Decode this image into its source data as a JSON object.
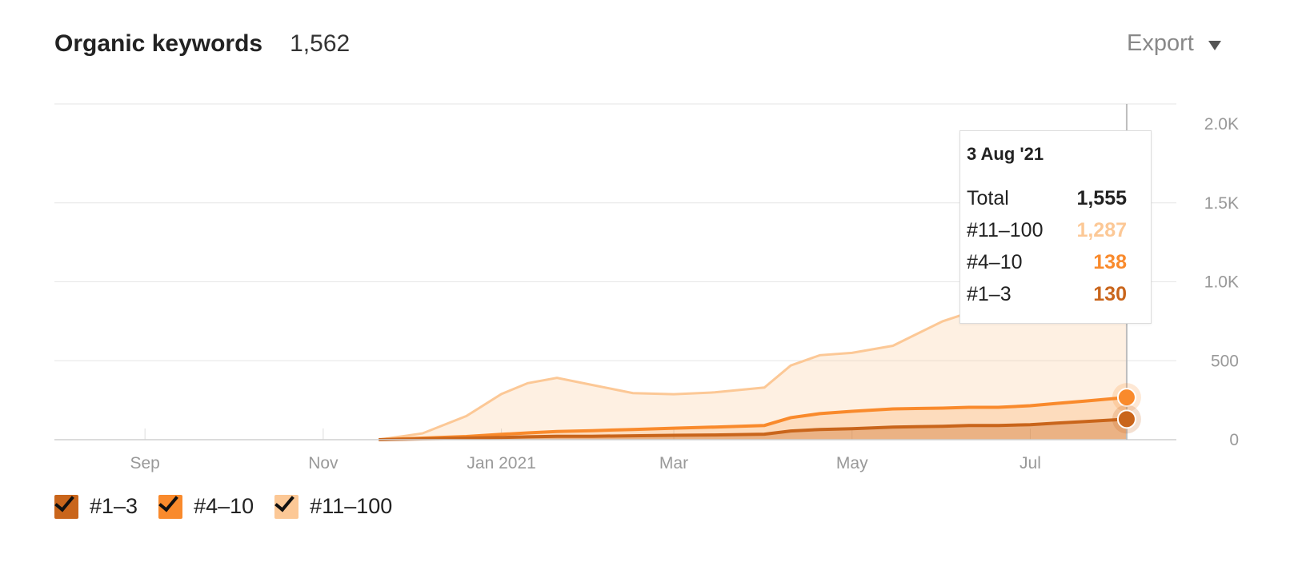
{
  "header": {
    "title": "Organic keywords",
    "count": "1,562",
    "export_label": "Export"
  },
  "colors": {
    "top3": "#c9651b",
    "top10": "#f98a2c",
    "top100": "#fcc896",
    "grid": "#e6e6e6",
    "axis_text": "#999999"
  },
  "legend": [
    {
      "label": "#1–3",
      "color": "#c9651b",
      "checked": true
    },
    {
      "label": "#4–10",
      "color": "#f98a2c",
      "checked": true
    },
    {
      "label": "#11–100",
      "color": "#fcc896",
      "checked": true
    }
  ],
  "tooltip": {
    "date": "3 Aug '21",
    "rows": [
      {
        "label": "Total",
        "value": "1,555",
        "color": "#222222"
      },
      {
        "label": "#11–100",
        "value": "1,287",
        "color": "#fcc896"
      },
      {
        "label": "#4–10",
        "value": "138",
        "color": "#f98a2c"
      },
      {
        "label": "#1–3",
        "value": "130",
        "color": "#c9651b"
      }
    ]
  },
  "chart_data": {
    "type": "area",
    "stacked": true,
    "title": "Organic keywords",
    "x_tick_labels": [
      "Sep",
      "Nov",
      "Jan 2021",
      "Mar",
      "May",
      "Jul"
    ],
    "y_tick_labels": [
      "0",
      "500",
      "1.0K",
      "1.5K",
      "2.0K"
    ],
    "ylim": [
      0,
      2000
    ],
    "y_axis_position": "right",
    "grid": true,
    "legend_position": "bottom-left",
    "x": [
      "2020-11-20",
      "2020-12-05",
      "2020-12-20",
      "2021-01-01",
      "2021-01-10",
      "2021-01-20",
      "2021-02-01",
      "2021-02-15",
      "2021-03-01",
      "2021-03-15",
      "2021-04-01",
      "2021-04-10",
      "2021-04-20",
      "2021-05-01",
      "2021-05-15",
      "2021-06-01",
      "2021-06-10",
      "2021-06-20",
      "2021-07-01",
      "2021-07-10",
      "2021-07-20",
      "2021-08-03"
    ],
    "series": [
      {
        "name": "#1–3",
        "values": [
          0,
          5,
          10,
          14,
          18,
          22,
          22,
          25,
          28,
          30,
          35,
          55,
          65,
          70,
          80,
          85,
          90,
          90,
          95,
          105,
          115,
          130
        ]
      },
      {
        "name": "#4–10",
        "values": [
          0,
          5,
          10,
          20,
          25,
          30,
          35,
          40,
          45,
          50,
          55,
          85,
          100,
          110,
          115,
          115,
          115,
          115,
          120,
          125,
          130,
          138
        ]
      },
      {
        "name": "#11–100",
        "values": [
          0,
          30,
          130,
          255,
          315,
          340,
          290,
          230,
          215,
          220,
          240,
          330,
          370,
          370,
          400,
          550,
          600,
          750,
          920,
          1050,
          1200,
          1287
        ]
      }
    ]
  }
}
